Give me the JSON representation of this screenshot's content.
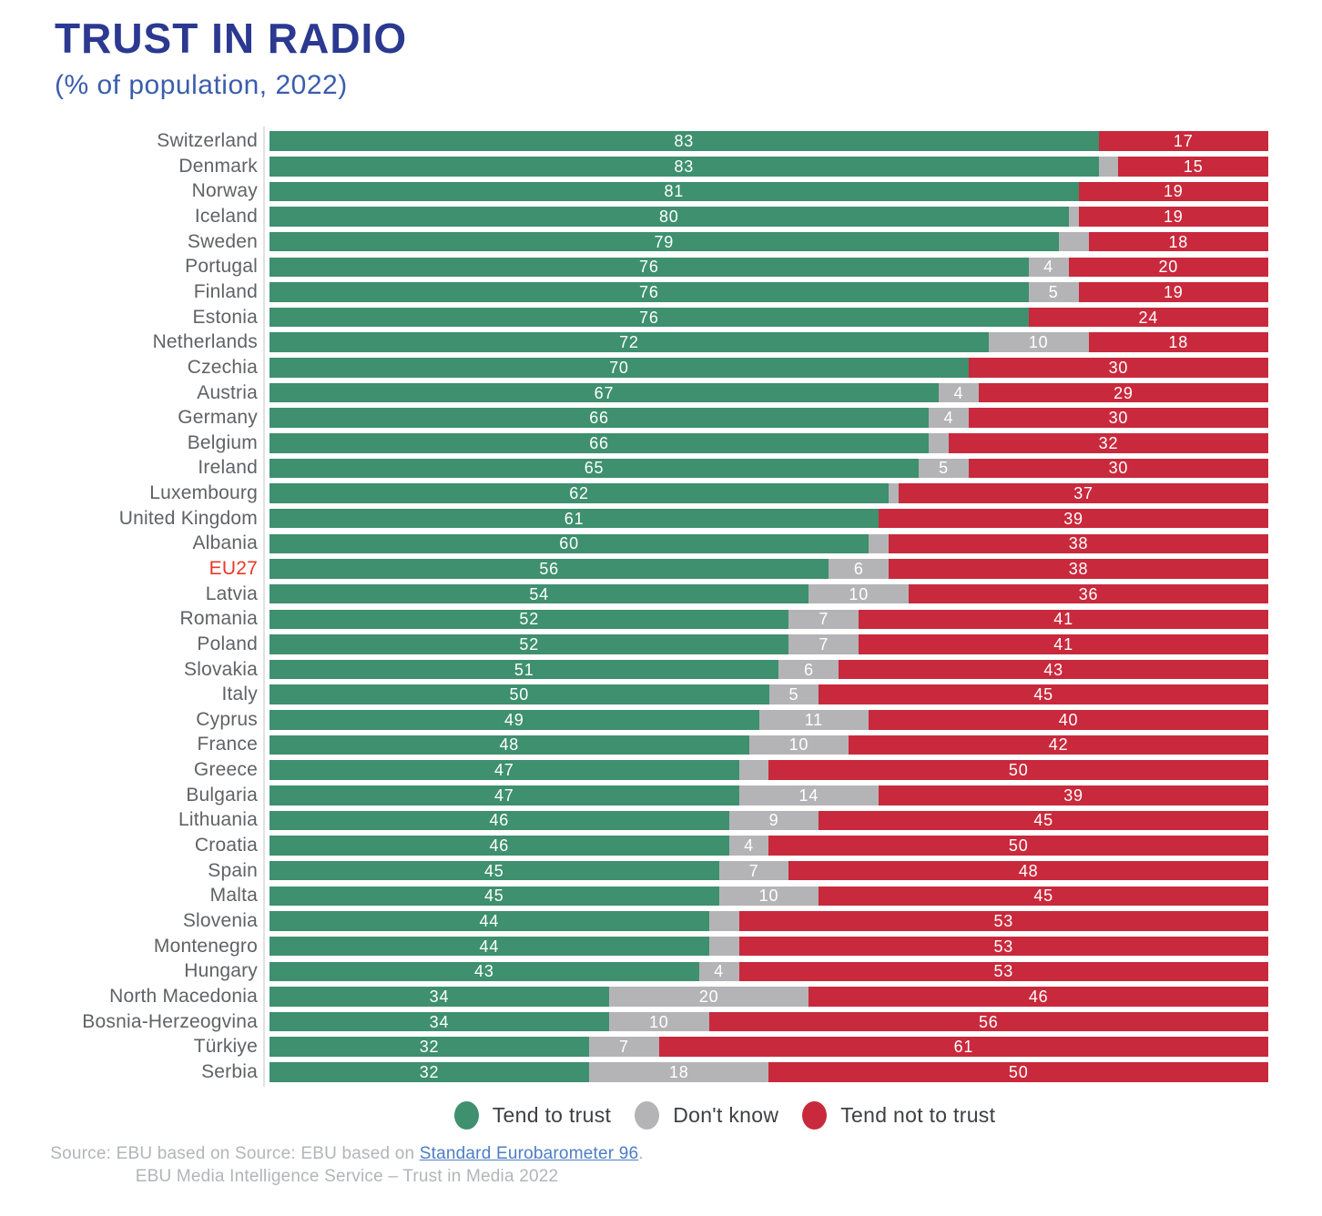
{
  "header": {
    "title": "TRUST IN RADIO",
    "subtitle": "(% of population, 2022)"
  },
  "colors": {
    "trust_green": "#3e906f",
    "dont_know_gray": "#b4b4b6",
    "not_trust_red": "#c9293c",
    "title_blue": "#2b3990",
    "subtitle_blue": "#3b5dad",
    "label_gray": "#606266",
    "eu27_red": "#e8382a",
    "axis_line": "#e0e1e3",
    "source_gray": "#b2b5b7",
    "link_blue": "#4d7dc4"
  },
  "chart_data": {
    "type": "bar",
    "orientation": "horizontal",
    "stacked": true,
    "unit": "% of population",
    "title": "TRUST IN RADIO (% of population, 2022)",
    "xlim": [
      0,
      100
    ],
    "series_names": [
      "Tend to trust",
      "Don't know",
      "Tend not to trust"
    ],
    "rows": [
      {
        "name": "Switzerland",
        "values": [
          83,
          0,
          17
        ],
        "labels": [
          "83",
          "",
          "17"
        ]
      },
      {
        "name": "Denmark",
        "values": [
          83,
          2,
          15
        ],
        "labels": [
          "83",
          "",
          "15"
        ]
      },
      {
        "name": "Norway",
        "values": [
          81,
          0,
          19
        ],
        "labels": [
          "81",
          "",
          "19"
        ]
      },
      {
        "name": "Iceland",
        "values": [
          80,
          1,
          19
        ],
        "labels": [
          "80",
          "",
          "19"
        ]
      },
      {
        "name": "Sweden",
        "values": [
          79,
          3,
          18
        ],
        "labels": [
          "79",
          "",
          "18"
        ]
      },
      {
        "name": "Portugal",
        "values": [
          76,
          4,
          20
        ],
        "labels": [
          "76",
          "4",
          "20"
        ]
      },
      {
        "name": "Finland",
        "values": [
          76,
          5,
          19
        ],
        "labels": [
          "76",
          "5",
          "19"
        ]
      },
      {
        "name": "Estonia",
        "values": [
          76,
          0,
          24
        ],
        "labels": [
          "76",
          "",
          "24"
        ]
      },
      {
        "name": "Netherlands",
        "values": [
          72,
          10,
          18
        ],
        "labels": [
          "72",
          "10",
          "18"
        ]
      },
      {
        "name": "Czechia",
        "values": [
          70,
          0,
          30
        ],
        "labels": [
          "70",
          "",
          "30"
        ]
      },
      {
        "name": "Austria",
        "values": [
          67,
          4,
          29
        ],
        "labels": [
          "67",
          "4",
          "29"
        ]
      },
      {
        "name": "Germany",
        "values": [
          66,
          4,
          30
        ],
        "labels": [
          "66",
          "4",
          "30"
        ]
      },
      {
        "name": "Belgium",
        "values": [
          66,
          2,
          32
        ],
        "labels": [
          "66",
          "",
          "32"
        ]
      },
      {
        "name": "Ireland",
        "values": [
          65,
          5,
          30
        ],
        "labels": [
          "65",
          "5",
          "30"
        ]
      },
      {
        "name": "Luxembourg",
        "values": [
          62,
          1,
          37
        ],
        "labels": [
          "62",
          "",
          "37"
        ]
      },
      {
        "name": "United Kingdom",
        "values": [
          61,
          0,
          39
        ],
        "labels": [
          "61",
          "",
          "39"
        ]
      },
      {
        "name": "Albania",
        "values": [
          60,
          2,
          38
        ],
        "labels": [
          "60",
          "",
          "38"
        ]
      },
      {
        "name": "EU27",
        "values": [
          56,
          6,
          38
        ],
        "labels": [
          "56",
          "6",
          "38"
        ],
        "highlight": true
      },
      {
        "name": "Latvia",
        "values": [
          54,
          10,
          36
        ],
        "labels": [
          "54",
          "10",
          "36"
        ]
      },
      {
        "name": "Romania",
        "values": [
          52,
          7,
          41
        ],
        "labels": [
          "52",
          "7",
          "41"
        ]
      },
      {
        "name": "Poland",
        "values": [
          52,
          7,
          41
        ],
        "labels": [
          "52",
          "7",
          "41"
        ]
      },
      {
        "name": "Slovakia",
        "values": [
          51,
          6,
          43
        ],
        "labels": [
          "51",
          "6",
          "43"
        ]
      },
      {
        "name": "Italy",
        "values": [
          50,
          5,
          45
        ],
        "labels": [
          "50",
          "5",
          "45"
        ]
      },
      {
        "name": "Cyprus",
        "values": [
          49,
          11,
          40
        ],
        "labels": [
          "49",
          "11",
          "40"
        ]
      },
      {
        "name": "France",
        "values": [
          48,
          10,
          42
        ],
        "labels": [
          "48",
          "10",
          "42"
        ]
      },
      {
        "name": "Greece",
        "values": [
          47,
          3,
          50
        ],
        "labels": [
          "47",
          "",
          "50"
        ]
      },
      {
        "name": "Bulgaria",
        "values": [
          47,
          14,
          39
        ],
        "labels": [
          "47",
          "14",
          "39"
        ]
      },
      {
        "name": "Lithuania",
        "values": [
          46,
          9,
          45
        ],
        "labels": [
          "46",
          "9",
          "45"
        ]
      },
      {
        "name": "Croatia",
        "values": [
          46,
          4,
          50
        ],
        "labels": [
          "46",
          "4",
          "50"
        ]
      },
      {
        "name": "Spain",
        "values": [
          45,
          7,
          48
        ],
        "labels": [
          "45",
          "7",
          "48"
        ]
      },
      {
        "name": "Malta",
        "values": [
          45,
          10,
          45
        ],
        "labels": [
          "45",
          "10",
          "45"
        ]
      },
      {
        "name": "Slovenia",
        "values": [
          44,
          3,
          53
        ],
        "labels": [
          "44",
          "",
          "53"
        ]
      },
      {
        "name": "Montenegro",
        "values": [
          44,
          3,
          53
        ],
        "labels": [
          "44",
          "",
          "53"
        ]
      },
      {
        "name": "Hungary",
        "values": [
          43,
          4,
          53
        ],
        "labels": [
          "43",
          "4",
          "53"
        ]
      },
      {
        "name": "North Macedonia",
        "values": [
          34,
          20,
          46
        ],
        "labels": [
          "34",
          "20",
          "46"
        ]
      },
      {
        "name": "Bosnia-Herzeogvina",
        "values": [
          34,
          10,
          56
        ],
        "labels": [
          "34",
          "10",
          "56"
        ]
      },
      {
        "name": "Türkiye",
        "values": [
          32,
          7,
          61
        ],
        "labels": [
          "32",
          "7",
          "61"
        ]
      },
      {
        "name": "Serbia",
        "values": [
          32,
          18,
          50
        ],
        "labels": [
          "32",
          "18",
          "50"
        ]
      }
    ]
  },
  "legend": {
    "items": [
      {
        "label": "Tend to trust",
        "color": "#3e906f"
      },
      {
        "label": "Don't know",
        "color": "#b4b4b6"
      },
      {
        "label": "Tend not to trust",
        "color": "#c9293c"
      }
    ]
  },
  "source": {
    "line1_prefix": "Source: EBU based on Source: EBU based on ",
    "link_text": "Standard Eurobarometer 96",
    "line1_suffix": ".",
    "line2": "EBU Media Intelligence Service – Trust in Media 2022"
  }
}
